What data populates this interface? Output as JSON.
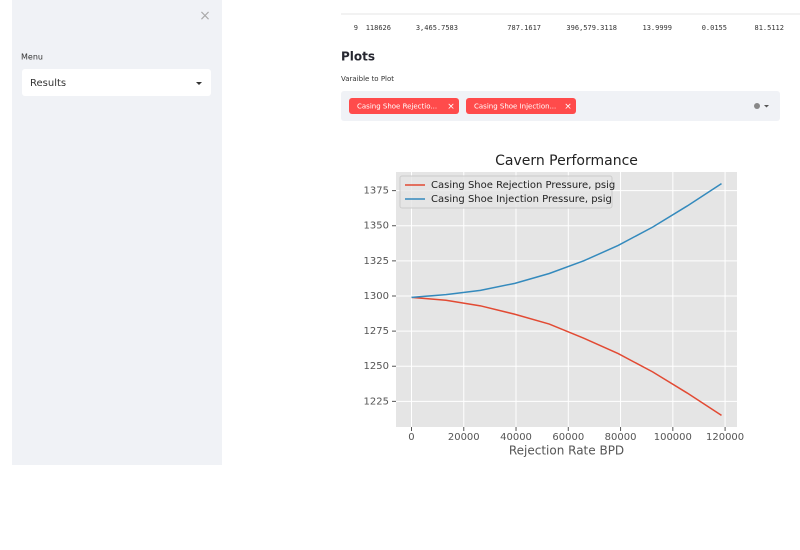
{
  "sidebar": {
    "close": "×",
    "menu_label": "Menu",
    "menu_value": "Results"
  },
  "table": {
    "row": [
      "9",
      "118626",
      "3,465.7583",
      "787.1617",
      "396,579.3118",
      "13.9999",
      "0.0155",
      "81.5112"
    ]
  },
  "plots": {
    "header": "Plots",
    "select_label": "Varaible to Plot",
    "chips": [
      "Casing Shoe Rejectio...",
      "Casing Shoe Injection..."
    ],
    "chip_close": "×"
  },
  "chart_data": {
    "type": "line",
    "title": "Cavern Performance",
    "x_label": "Rejection Rate BPD",
    "x": [
      0,
      13181,
      26361,
      39542,
      52723,
      65903,
      79084,
      92264,
      105445,
      118626
    ],
    "series": [
      {
        "name": "Casing Shoe Rejection Pressure, psig",
        "color": "#e24a33",
        "values": [
          1299,
          1297,
          1293,
          1287,
          1280,
          1270,
          1259,
          1246,
          1231,
          1215
        ]
      },
      {
        "name": "Casing Shoe Injection Pressure, psig",
        "color": "#348abd",
        "values": [
          1299,
          1301,
          1304,
          1309,
          1316,
          1325,
          1336,
          1349,
          1364,
          1380
        ]
      }
    ],
    "xlim": [
      -5931,
      124557
    ],
    "ylim": [
      1206.75,
      1388.25
    ],
    "xticks": [
      0,
      20000,
      40000,
      60000,
      80000,
      100000,
      120000
    ],
    "yticks": [
      1225,
      1250,
      1275,
      1300,
      1325,
      1350,
      1375
    ],
    "grid": true,
    "legend": "upper left"
  }
}
